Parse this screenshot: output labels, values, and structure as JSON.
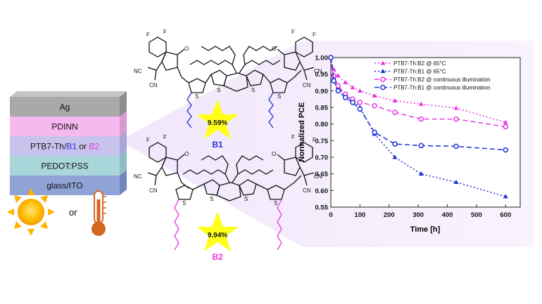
{
  "device": {
    "layers": [
      {
        "label": "Ag",
        "face": "#a9a9a9",
        "top": "#c4c4c4",
        "side": "#8c8c8c"
      },
      {
        "label": "PDINN",
        "face": "#f5b8ef",
        "top": "#fad3f6",
        "side": "#d99ad2"
      },
      {
        "label_parts": [
          "PTB7-Th/",
          "B1",
          " or ",
          "B2"
        ],
        "face": "#c8c3ec",
        "top": "#dcd8f4",
        "side": "#a9a4d6"
      },
      {
        "label": "PEDOT:PSS",
        "face": "#a9d6db",
        "top": "#c5e6ea",
        "side": "#8fbdc3"
      },
      {
        "label": "glass/ITO",
        "face": "#8fa3d6",
        "top": "#a9b9e2",
        "side": "#7286be"
      }
    ],
    "or_text": "or",
    "b1_color": "#1f2fd6",
    "b2_color": "#e838e0"
  },
  "molecules": {
    "b1": {
      "label": "B1",
      "pce": "9.59%",
      "label_color": "#1f2fd6",
      "side_chain_color": "#2233cc"
    },
    "b2": {
      "label": "B2",
      "pce": "9.94%",
      "label_color": "#e838e0",
      "side_chain_color": "#e838e0"
    },
    "star_color": "#ffff1a",
    "atoms": {
      "F": "F",
      "O": "O",
      "S": "S",
      "CN": "CN",
      "NC": "NC"
    }
  },
  "chart_data": {
    "type": "line",
    "xlabel": "Time [h]",
    "ylabel": "Normalized PCE",
    "xlim": [
      0,
      650
    ],
    "ylim": [
      0.55,
      1.0
    ],
    "xticks": [
      0,
      100,
      200,
      300,
      400,
      500,
      600
    ],
    "yticks": [
      0.55,
      0.6,
      0.65,
      0.7,
      0.75,
      0.8,
      0.85,
      0.9,
      0.95,
      1.0
    ],
    "legend_position": "top-right",
    "series": [
      {
        "name": "PTB7-Th:B2 @ 65°C",
        "color": "#e838e0",
        "marker": "triangle-filled",
        "dash": "2,3",
        "x": [
          0,
          10,
          25,
          50,
          75,
          100,
          150,
          220,
          310,
          430,
          600
        ],
        "y": [
          1.0,
          0.965,
          0.945,
          0.925,
          0.91,
          0.9,
          0.885,
          0.87,
          0.86,
          0.848,
          0.805
        ]
      },
      {
        "name": "PTB7-Th:B1 @ 65°C",
        "color": "#1f2fd6",
        "marker": "triangle-filled",
        "dash": "2,3",
        "x": [
          0,
          10,
          25,
          50,
          75,
          100,
          150,
          220,
          310,
          430,
          600
        ],
        "y": [
          1.0,
          0.94,
          0.91,
          0.885,
          0.875,
          0.85,
          0.77,
          0.7,
          0.65,
          0.625,
          0.582
        ]
      },
      {
        "name": "PTB7-Th:B2 @ continuous illumination",
        "color": "#e838e0",
        "marker": "circle-open",
        "dash": "7,4",
        "x": [
          0,
          10,
          25,
          50,
          75,
          100,
          150,
          220,
          310,
          430,
          600
        ],
        "y": [
          1.0,
          0.945,
          0.915,
          0.89,
          0.875,
          0.865,
          0.855,
          0.835,
          0.815,
          0.815,
          0.792
        ]
      },
      {
        "name": "PTB7-Th:B1 @ continuous illumination",
        "color": "#1f2fd6",
        "marker": "circle-open",
        "dash": "7,4",
        "x": [
          0,
          10,
          25,
          50,
          75,
          100,
          150,
          220,
          310,
          430,
          600
        ],
        "y": [
          1.0,
          0.93,
          0.9,
          0.88,
          0.865,
          0.845,
          0.775,
          0.74,
          0.735,
          0.733,
          0.722
        ]
      }
    ]
  }
}
